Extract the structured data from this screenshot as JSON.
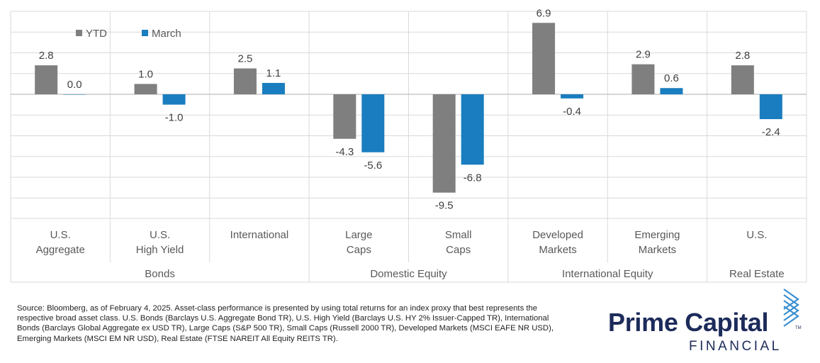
{
  "chart_data": {
    "type": "bar",
    "categories": [
      [
        "U.S.",
        "Aggregate"
      ],
      [
        "U.S.",
        "High Yield"
      ],
      [
        "International"
      ],
      [
        "Large",
        "Caps"
      ],
      [
        "Small",
        "Caps"
      ],
      [
        "Developed",
        "Markets"
      ],
      [
        "Emerging",
        "Markets"
      ],
      [
        "U.S."
      ]
    ],
    "groups": [
      {
        "label": "Bonds",
        "span": 3
      },
      {
        "label": "Domestic Equity",
        "span": 2
      },
      {
        "label": "International Equity",
        "span": 2
      },
      {
        "label": "Real Estate",
        "span": 1
      }
    ],
    "series": [
      {
        "name": "YTD",
        "color": "#7f7f7f",
        "values": [
          2.8,
          1.0,
          2.5,
          -4.3,
          -9.5,
          6.9,
          2.9,
          2.8
        ]
      },
      {
        "name": "March",
        "color": "#1a7dbf",
        "values": [
          0.0,
          -1.0,
          1.1,
          -5.6,
          -6.8,
          -0.4,
          0.6,
          -2.4
        ]
      }
    ],
    "data_labels": [
      [
        "2.8",
        "1.0",
        "2.5",
        "-4.3",
        "-9.5",
        "6.9",
        "2.9",
        "2.8"
      ],
      [
        "0.0",
        "-1.0",
        "1.1",
        "-5.6",
        "-6.8",
        "-0.4",
        "0.6",
        "-2.4"
      ]
    ],
    "ylim": [
      -10,
      8.5
    ],
    "gridlines": true,
    "legend_position": "top-left",
    "title": "",
    "xlabel": "",
    "ylabel": ""
  },
  "footer": {
    "source_note": "Source: Bloomberg, as of February 4, 2025. Asset-class performance is presented by using total returns for an index proxy that best represents the respective broad asset class. U.S. Bonds (Barclays U.S. Aggregate Bond TR), U.S. High Yield (Barclays U.S. HY 2% Issuer-Capped TR), International Bonds (Barclays Global Aggregate ex USD TR), Large Caps (S&P 500 TR), Small Caps (Russell 2000 TR), Developed Markets (MSCI EAFE NR USD), Emerging Markets (MSCI EM NR USD), Real Estate (FTSE NAREIT All Equity REITS TR)."
  },
  "logo": {
    "wordmark": "Prime Capital",
    "sub": "FINANCIAL",
    "tm": "TM",
    "color": "#1c2b5a",
    "mark_color": "#3a8fd0"
  }
}
